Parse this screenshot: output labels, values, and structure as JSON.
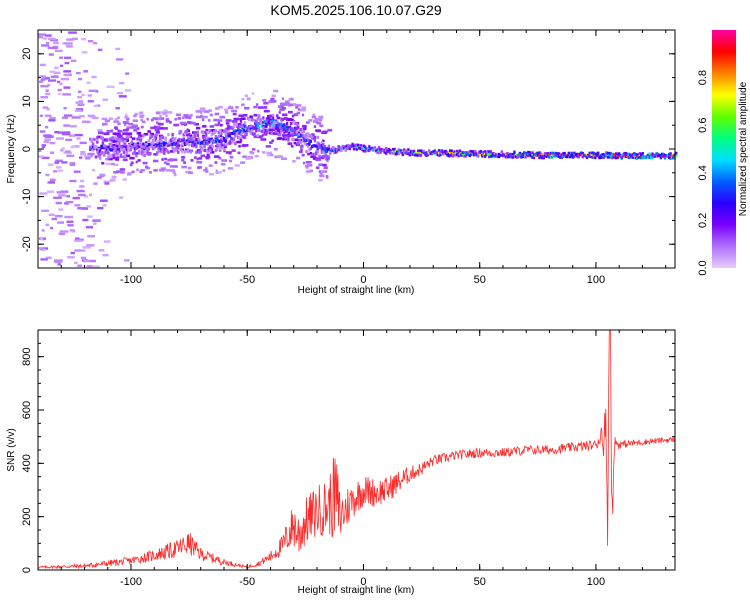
{
  "figure_title": "KOM5.2025.106.10.07.G29",
  "chart_data": [
    {
      "type": "heatmap",
      "xlabel": "Height of straight line (km)",
      "ylabel": "Frequency (Hz)",
      "xlim": [
        -140,
        134
      ],
      "ylim": [
        -25,
        25
      ],
      "xticks": [
        "-100",
        "-50",
        "0",
        "50",
        "100"
      ],
      "yticks": [
        "-20",
        "-10",
        "0",
        "10",
        "20"
      ],
      "colorbar": {
        "label": "Normalized spectral amplitude",
        "range": [
          0,
          1
        ],
        "ticks": [
          "0.0",
          "0.2",
          "0.4",
          "0.6",
          "0.8"
        ],
        "colors": [
          "#e8ccff",
          "#b070ff",
          "#7a00ff",
          "#2a00ff",
          "#0060ff",
          "#00e0ff",
          "#00ff80",
          "#60ff00",
          "#ffff00",
          "#ff8000",
          "#ff0000",
          "#ff00a0"
        ]
      },
      "ridge": {
        "x": [
          -120,
          -100,
          -90,
          -80,
          -70,
          -60,
          -55,
          -50,
          -45,
          -40,
          -35,
          -30,
          -25,
          -20,
          -15,
          -10,
          -5,
          0,
          10,
          20,
          40,
          60,
          80,
          100,
          105,
          110,
          134
        ],
        "freq": [
          0,
          0.5,
          1,
          1.5,
          1.5,
          2,
          3.5,
          4.5,
          5,
          5.5,
          4.5,
          3.5,
          1.5,
          0.5,
          -0.5,
          0,
          0.5,
          0,
          -0.5,
          -0.8,
          -1,
          -1.2,
          -1.4,
          -1.4,
          -1.3,
          -1.5,
          -1.5
        ],
        "amplitude": [
          0.3,
          0.25,
          0.3,
          0.3,
          0.3,
          0.3,
          0.35,
          0.35,
          0.4,
          0.4,
          0.4,
          0.35,
          0.3,
          0.3,
          0.3,
          0.45,
          0.5,
          0.5,
          0.55,
          0.6,
          0.7,
          0.75,
          0.8,
          0.8,
          0.6,
          0.9,
          1.0
        ]
      }
    },
    {
      "type": "line",
      "xlabel": "Height of straight line (km)",
      "ylabel": "SNR (v/v)",
      "xlim": [
        -140,
        134
      ],
      "ylim": [
        0,
        900
      ],
      "xticks": [
        "-100",
        "-50",
        "0",
        "50",
        "100"
      ],
      "yticks": [
        "0",
        "200",
        "400",
        "600",
        "800"
      ],
      "color": "#ff2a2a",
      "series": [
        {
          "x": [
            -140,
            -120,
            -110,
            -100,
            -90,
            -80,
            -75,
            -70,
            -60,
            -50,
            -45,
            -40,
            -35,
            -30,
            -28,
            -25,
            -20,
            -15,
            -12,
            -10,
            -5,
            0,
            5,
            10,
            15,
            20,
            25,
            30,
            40,
            50,
            60,
            70,
            80,
            90,
            100,
            103,
            105,
            106,
            107,
            108,
            110,
            120,
            134
          ],
          "y": [
            10,
            15,
            25,
            35,
            55,
            80,
            100,
            60,
            30,
            10,
            25,
            50,
            90,
            170,
            130,
            180,
            220,
            240,
            280,
            200,
            260,
            300,
            290,
            300,
            330,
            360,
            380,
            410,
            430,
            440,
            440,
            450,
            450,
            460,
            470,
            520,
            380,
            900,
            180,
            480,
            470,
            480,
            490
          ],
          "noise": [
            4,
            8,
            12,
            15,
            22,
            35,
            45,
            25,
            12,
            4,
            10,
            20,
            40,
            90,
            100,
            90,
            100,
            110,
            180,
            100,
            70,
            60,
            55,
            50,
            45,
            30,
            25,
            20,
            18,
            18,
            18,
            18,
            18,
            18,
            20,
            60,
            300,
            0,
            100,
            30,
            15,
            12,
            10
          ]
        }
      ]
    }
  ]
}
